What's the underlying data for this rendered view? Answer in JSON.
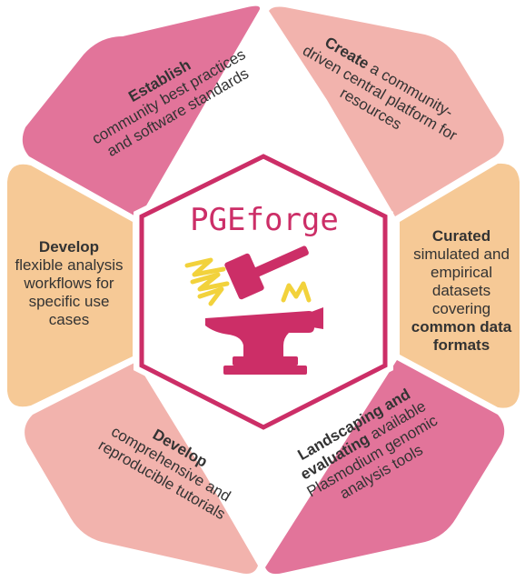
{
  "center": {
    "title": "PGEforge",
    "logo": "hammer-and-anvil-icon"
  },
  "colors": {
    "pink_dark": "#e2749a",
    "pink_light": "#f2b3ad",
    "peach": "#f6c996",
    "magenta": "#cc2e67",
    "yellow": "#f2d23c",
    "text": "#333333"
  },
  "segments": {
    "top_left": {
      "bold": "Establish",
      "rest": "community best practices and software standards"
    },
    "top_right": {
      "bold": "Create",
      "rest": "a community-driven central platform for resources"
    },
    "right": {
      "bold": "Curated",
      "rest": "simulated and empirical datasets covering",
      "bold2": "common data formats"
    },
    "bottom_right": {
      "bold": "Landscaping and evaluating",
      "rest": "available Plasmodium genomic analysis tools"
    },
    "bottom_left": {
      "bold": "Develop",
      "rest": "comprehensive and reproducible tutorials"
    },
    "left": {
      "bold": "Develop",
      "rest": "flexible analysis workflows for specific use cases"
    }
  }
}
